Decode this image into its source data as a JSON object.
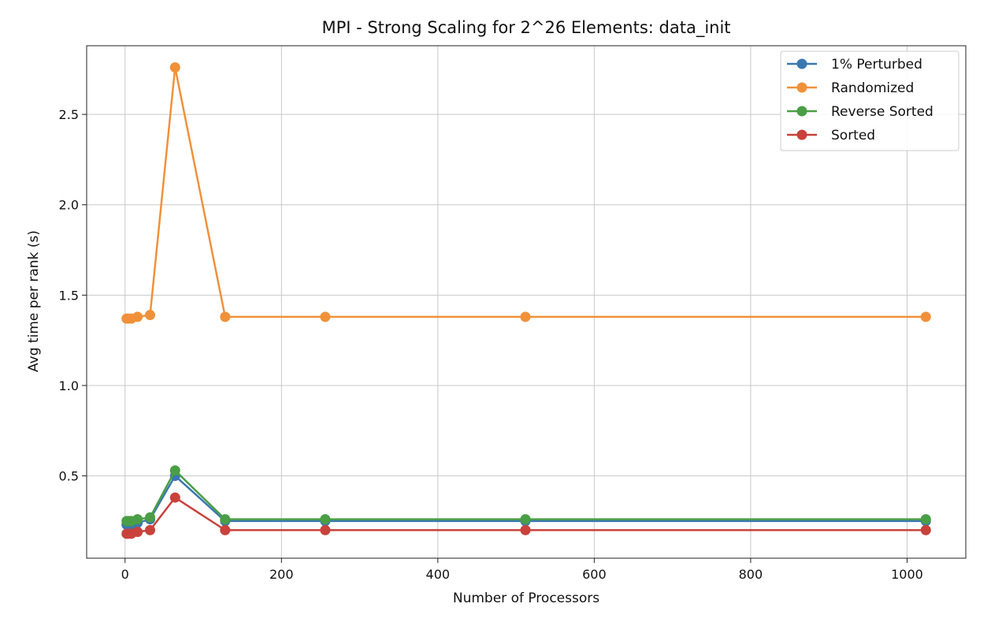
{
  "chart_data": {
    "type": "line",
    "title": "MPI - Strong Scaling for 2^26 Elements: data_init",
    "xlabel": "Number of Processors",
    "ylabel": "Avg time per rank (s)",
    "x": [
      2,
      4,
      8,
      16,
      32,
      64,
      128,
      256,
      512,
      1024
    ],
    "xlim": [
      -49.1,
      1075.1
    ],
    "ylim": [
      0.0445,
      2.88
    ],
    "xticks": [
      0,
      200,
      400,
      600,
      800,
      1000
    ],
    "yticks": [
      0.5,
      1.0,
      1.5,
      2.0,
      2.5
    ],
    "xtick_labels": [
      "0",
      "200",
      "400",
      "600",
      "800",
      "1000"
    ],
    "ytick_labels": [
      "0.5",
      "1.0",
      "1.5",
      "2.0",
      "2.5"
    ],
    "grid": true,
    "legend_position": "top-right",
    "series": [
      {
        "name": "1% Perturbed",
        "color": "#3a78b0",
        "values": [
          0.23,
          0.23,
          0.23,
          0.24,
          0.26,
          0.5,
          0.25,
          0.25,
          0.25,
          0.25
        ]
      },
      {
        "name": "Randomized",
        "color": "#f0913a",
        "values": [
          1.37,
          1.37,
          1.37,
          1.38,
          1.39,
          2.76,
          1.38,
          1.38,
          1.38,
          1.38
        ]
      },
      {
        "name": "Reverse Sorted",
        "color": "#4a9e45",
        "values": [
          0.25,
          0.25,
          0.25,
          0.26,
          0.27,
          0.53,
          0.26,
          0.26,
          0.26,
          0.26
        ]
      },
      {
        "name": "Sorted",
        "color": "#c8423b",
        "values": [
          0.18,
          0.18,
          0.18,
          0.19,
          0.2,
          0.38,
          0.2,
          0.2,
          0.2,
          0.2
        ]
      }
    ]
  }
}
